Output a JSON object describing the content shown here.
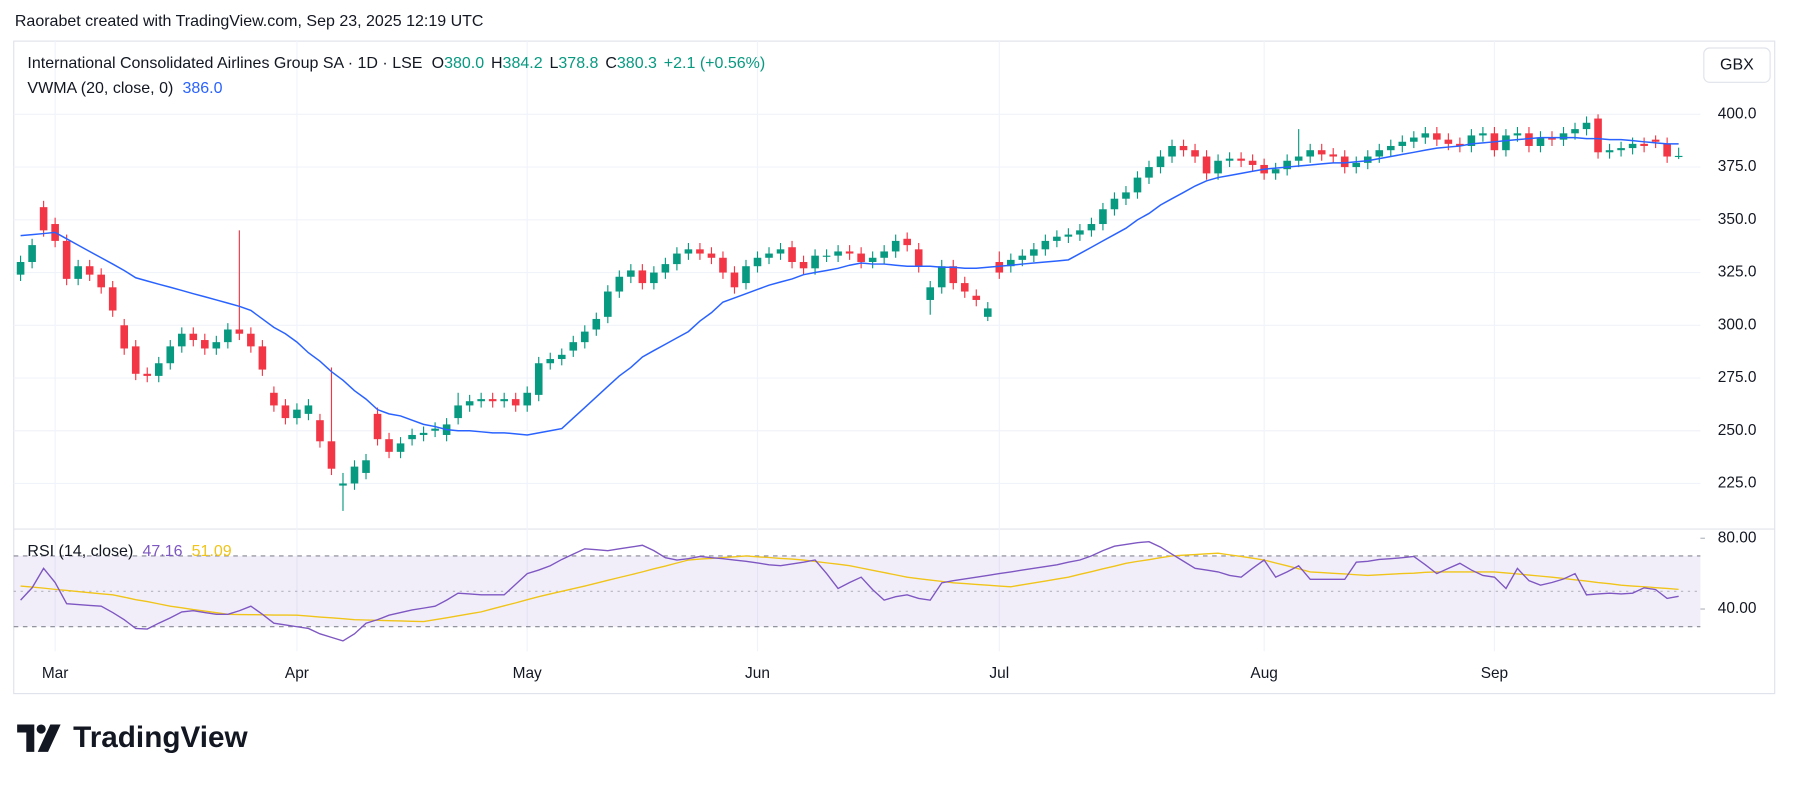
{
  "header": "Raorabet created with TradingView.com, Sep 23, 2025 12:19 UTC",
  "logo": "TradingView",
  "chart_data": [
    {
      "type": "candlestick",
      "title": "International Consolidated Airlines Group SA · 1D · LSE",
      "ohlc_legend": [
        {
          "label": "O",
          "value": "380.0"
        },
        {
          "label": "H",
          "value": "384.2"
        },
        {
          "label": "L",
          "value": "378.8"
        },
        {
          "label": "C",
          "value": "380.3"
        }
      ],
      "change": "+2.1 (+0.56%)",
      "unit": "GBX",
      "up_color": "#089981",
      "down_color": "#f23645",
      "grid": true,
      "ylim": [
        203.4,
        434.7
      ],
      "yticks": [
        {
          "value": 225,
          "label": "225.0"
        },
        {
          "value": 250,
          "label": "250.0"
        },
        {
          "value": 275,
          "label": "275.0"
        },
        {
          "value": 300,
          "label": "300.0"
        },
        {
          "value": 325,
          "label": "325.0"
        },
        {
          "value": 350,
          "label": "350.0"
        },
        {
          "value": 375,
          "label": "375.0"
        },
        {
          "value": 400,
          "label": "400.0"
        }
      ],
      "categories": [
        null,
        null,
        null,
        "Mar",
        null,
        null,
        null,
        null,
        null,
        null,
        null,
        null,
        null,
        null,
        null,
        null,
        null,
        null,
        null,
        null,
        null,
        null,
        null,
        null,
        "Apr",
        null,
        null,
        null,
        null,
        null,
        null,
        null,
        null,
        null,
        null,
        null,
        null,
        null,
        null,
        null,
        null,
        null,
        null,
        null,
        "May",
        null,
        null,
        null,
        null,
        null,
        null,
        null,
        null,
        null,
        null,
        null,
        null,
        null,
        null,
        null,
        null,
        null,
        null,
        null,
        "Jun",
        null,
        null,
        null,
        null,
        null,
        null,
        null,
        null,
        null,
        null,
        null,
        null,
        null,
        null,
        null,
        null,
        null,
        null,
        null,
        null,
        "Jul",
        null,
        null,
        null,
        null,
        null,
        null,
        null,
        null,
        null,
        null,
        null,
        null,
        null,
        null,
        null,
        null,
        null,
        null,
        null,
        null,
        null,
        null,
        "Aug",
        null,
        null,
        null,
        null,
        null,
        null,
        null,
        null,
        null,
        null,
        null,
        null,
        null,
        null,
        null,
        null,
        null,
        null,
        null,
        "Sep",
        null,
        null,
        null,
        null,
        null,
        null,
        null,
        null,
        null,
        null,
        null,
        null,
        null,
        null,
        null,
        null
      ],
      "open": [
        324,
        330,
        356,
        348,
        340,
        322,
        328,
        324,
        318,
        300,
        290,
        277,
        276,
        282,
        290,
        296,
        293,
        289,
        292,
        298,
        296,
        290,
        268,
        262,
        256,
        258,
        255,
        245,
        224,
        225,
        230,
        258,
        246,
        240,
        246,
        248,
        250,
        248,
        256,
        262,
        264,
        265,
        264,
        265,
        262,
        267,
        282,
        284,
        288,
        292,
        298,
        304,
        316,
        323,
        326,
        320,
        325,
        329,
        334,
        336,
        334,
        332,
        325,
        320,
        328,
        332,
        334,
        337,
        330,
        327,
        333,
        333,
        335,
        334,
        330,
        332,
        335,
        341,
        336,
        312,
        318,
        328,
        320,
        314,
        304,
        330,
        328,
        331,
        333,
        336,
        340,
        342,
        343,
        345,
        348,
        355,
        360,
        363,
        370,
        375,
        380,
        385,
        383,
        380,
        372,
        378,
        379,
        378,
        376,
        372,
        374,
        378,
        380,
        383,
        381,
        380,
        375,
        377,
        380,
        383,
        385,
        387,
        389,
        391,
        388,
        386,
        385,
        390,
        391,
        383,
        390,
        391,
        385,
        389,
        388,
        391,
        393,
        398,
        382,
        383,
        384,
        386,
        388,
        386,
        380
      ],
      "high": [
        333,
        341,
        359,
        351,
        343,
        331,
        331,
        327,
        321,
        303,
        293,
        280,
        285,
        293,
        299,
        299,
        296,
        295,
        301,
        345,
        299,
        293,
        271,
        265,
        263,
        265,
        258,
        280,
        230,
        236,
        239,
        261,
        249,
        247,
        251,
        252,
        254,
        256,
        268,
        267,
        268,
        268,
        268,
        268,
        271,
        285,
        287,
        289,
        295,
        300,
        306,
        319,
        326,
        329,
        329,
        328,
        332,
        337,
        339,
        339,
        337,
        335,
        328,
        331,
        335,
        337,
        339,
        340,
        333,
        336,
        336,
        338,
        338,
        337,
        335,
        338,
        343,
        344,
        339,
        321,
        331,
        331,
        323,
        317,
        311,
        335,
        334,
        336,
        339,
        343,
        345,
        346,
        348,
        351,
        358,
        363,
        366,
        373,
        378,
        383,
        388,
        388,
        386,
        383,
        381,
        382,
        382,
        381,
        379,
        377,
        381,
        393,
        386,
        386,
        384,
        383,
        380,
        383,
        386,
        388,
        390,
        392,
        394,
        394,
        391,
        389,
        393,
        394,
        394,
        393,
        394,
        394,
        392,
        392,
        394,
        396,
        399,
        400,
        386,
        387,
        389,
        389,
        390,
        389,
        384.2
      ],
      "low": [
        321,
        327,
        342,
        337,
        319,
        319,
        321,
        315,
        304,
        286,
        274,
        273,
        273,
        279,
        287,
        290,
        286,
        286,
        289,
        293,
        287,
        276,
        259,
        253,
        253,
        255,
        242,
        229,
        212,
        222,
        227,
        243,
        237,
        237,
        243,
        245,
        247,
        245,
        253,
        259,
        261,
        261,
        261,
        259,
        259,
        264,
        279,
        281,
        285,
        289,
        295,
        301,
        313,
        320,
        317,
        317,
        322,
        326,
        331,
        331,
        329,
        322,
        315,
        317,
        325,
        329,
        331,
        327,
        324,
        324,
        330,
        330,
        331,
        327,
        327,
        329,
        332,
        335,
        325,
        305,
        315,
        317,
        313,
        309,
        302,
        322,
        325,
        328,
        330,
        333,
        337,
        339,
        340,
        342,
        345,
        352,
        357,
        360,
        367,
        372,
        377,
        380,
        377,
        369,
        369,
        375,
        375,
        373,
        369,
        369,
        371,
        375,
        377,
        378,
        377,
        372,
        372,
        374,
        377,
        380,
        382,
        384,
        386,
        385,
        383,
        382,
        382,
        387,
        380,
        380,
        387,
        382,
        382,
        385,
        385,
        388,
        390,
        379,
        379,
        380,
        381,
        382,
        384,
        377,
        378.8
      ],
      "close": [
        330,
        338,
        345,
        340,
        322,
        328,
        324,
        318,
        307,
        289,
        277,
        276,
        282,
        290,
        296,
        293,
        289,
        292,
        298,
        296,
        290,
        279,
        262,
        256,
        260,
        262,
        245,
        232,
        225,
        233,
        236,
        246,
        240,
        244,
        248,
        249,
        251,
        253,
        262,
        264,
        265,
        264,
        265,
        262,
        268,
        282,
        284,
        286,
        292,
        297,
        303,
        316,
        323,
        326,
        320,
        325,
        329,
        334,
        336,
        334,
        332,
        325,
        318,
        328,
        332,
        334,
        336,
        330,
        327,
        333,
        333,
        335,
        334,
        330,
        332,
        335,
        340,
        338,
        328,
        318,
        328,
        320,
        316,
        312,
        308,
        325,
        331,
        333,
        336,
        340,
        342,
        343,
        345,
        348,
        355,
        360,
        363,
        370,
        375,
        380,
        385,
        383,
        380,
        372,
        378,
        379,
        378,
        376,
        372,
        374,
        378,
        380,
        383,
        381,
        380,
        375,
        377,
        380,
        383,
        385,
        387,
        389,
        391,
        388,
        386,
        385,
        390,
        391,
        383,
        390,
        391,
        385,
        389,
        388,
        391,
        393,
        396,
        382,
        383,
        384,
        386,
        385,
        387,
        380,
        380.3
      ],
      "overlays": [
        {
          "name": "VWMA (20, close, 0)",
          "color": "#2962ff",
          "value_label": "386.0",
          "values": [
            342.5,
            343,
            343.5,
            344,
            341,
            338,
            335,
            332,
            329,
            326,
            322.5,
            321,
            319.5,
            318,
            316.5,
            315,
            313.5,
            312,
            310.5,
            309,
            307,
            303,
            299,
            296,
            292,
            287,
            283,
            278,
            274,
            269,
            265,
            260,
            258,
            257,
            255,
            253,
            252,
            250.5,
            250,
            250,
            249.5,
            249,
            249,
            248.5,
            248,
            249,
            250,
            251,
            256,
            261,
            266,
            271,
            276,
            280,
            285,
            288,
            291,
            294,
            297,
            302,
            306,
            311,
            313,
            315,
            317,
            319,
            320.5,
            322,
            324,
            325,
            326,
            327,
            328.5,
            329.5,
            329,
            329,
            328.5,
            328,
            328,
            328,
            327.5,
            327.5,
            327,
            327,
            327.5,
            328,
            328.5,
            329,
            329.5,
            330,
            330.5,
            331,
            334,
            337,
            340,
            343,
            346,
            350,
            353,
            357,
            360,
            363,
            366,
            368.5,
            370,
            371,
            372,
            373,
            374,
            374.5,
            375,
            375.5,
            376,
            376.5,
            377,
            377,
            377.5,
            378,
            379,
            380,
            381,
            382,
            383,
            384,
            384.5,
            385,
            386,
            386.5,
            387,
            387.5,
            388,
            388.5,
            389,
            389,
            389,
            389,
            388.5,
            388.5,
            388,
            388,
            387.5,
            387,
            386.5,
            386,
            386
          ]
        }
      ]
    },
    {
      "type": "line",
      "ylim": [
        16.1,
        85.2
      ],
      "yticks": [
        {
          "value": 40,
          "label": "40.00"
        },
        {
          "value": 80,
          "label": "80.00"
        }
      ],
      "band_lines": [
        70,
        50,
        30
      ],
      "band_color": "#7e57c2",
      "series": [
        {
          "name": "RSI (14, close)",
          "color": "#7e57c2",
          "value_label": "47.16",
          "values": [
            45,
            52,
            63,
            55,
            43,
            42.5,
            42,
            41.6,
            38,
            34,
            29,
            28.7,
            32,
            35,
            38.4,
            39,
            38,
            37,
            37,
            39,
            41.6,
            37,
            32,
            31,
            30,
            29,
            26,
            24,
            22,
            26,
            32,
            34,
            36.5,
            38,
            39.5,
            40.5,
            41.6,
            45,
            49,
            48.5,
            48,
            48,
            48,
            54,
            60,
            62,
            64.5,
            68,
            71,
            74,
            73.5,
            73,
            74,
            75,
            76,
            73,
            69,
            67.7,
            68.5,
            69.7,
            69,
            68.5,
            67.7,
            67,
            66,
            65,
            64.5,
            65.5,
            66.5,
            67.7,
            60,
            51.6,
            55,
            58,
            51,
            45,
            47,
            48,
            46,
            45,
            54.8,
            56,
            57,
            58,
            59,
            60,
            61,
            62,
            63,
            64,
            65,
            66.5,
            67.7,
            70,
            73,
            75.5,
            76.5,
            77.5,
            78,
            75,
            71,
            67,
            63,
            62,
            61,
            59,
            58,
            63,
            67.7,
            58,
            61,
            64.5,
            56.8,
            56.8,
            56.8,
            56.8,
            66.5,
            67,
            68,
            68.5,
            69,
            69.7,
            65,
            60,
            63,
            65.8,
            62,
            59,
            58,
            51.6,
            63,
            56,
            53.5,
            55,
            57,
            60,
            48,
            48.5,
            49,
            48.5,
            49,
            52,
            51,
            46,
            47.16
          ]
        },
        {
          "color": "#f0c419",
          "value_label": "51.09",
          "values": [
            53,
            52.4,
            51.8,
            51.1,
            50.5,
            49.9,
            49.2,
            48.6,
            48,
            46.7,
            45.3,
            44.2,
            42.9,
            41.6,
            40.7,
            39.7,
            38.8,
            37.9,
            37,
            36.9,
            36.8,
            36.7,
            36.6,
            36.6,
            36.5,
            36,
            35.5,
            35,
            34.5,
            34,
            33.8,
            33.6,
            33.4,
            33.3,
            33.1,
            32.9,
            34,
            35,
            36.2,
            37.3,
            38.4,
            40.1,
            41.8,
            43.5,
            45.3,
            47,
            48.5,
            50,
            51.5,
            53,
            54.6,
            56.2,
            57.8,
            59.4,
            61,
            62.7,
            64.3,
            66,
            67.7,
            68.2,
            68.6,
            69.1,
            69.5,
            70,
            69.5,
            69.1,
            68.6,
            68.2,
            67.7,
            66.9,
            66.1,
            65.3,
            64.5,
            63.2,
            61.9,
            60.6,
            59.3,
            58,
            57.2,
            56.4,
            55.6,
            54.8,
            54.4,
            53.9,
            53.5,
            53,
            52.6,
            53.7,
            54.7,
            55.8,
            56.9,
            58,
            59.6,
            61.1,
            62.7,
            64.2,
            65.8,
            66.9,
            67.9,
            69,
            70,
            70.4,
            70.8,
            71.2,
            71.6,
            70.6,
            69.7,
            68.7,
            67.7,
            66,
            64.4,
            62.7,
            61,
            60.6,
            60.2,
            59.8,
            59.4,
            59,
            59.3,
            59.7,
            60,
            60.3,
            60.7,
            61,
            61,
            61,
            61,
            61,
            61,
            60.4,
            59.8,
            59.2,
            58.6,
            58,
            57.3,
            56.5,
            55.8,
            55,
            54.3,
            53.5,
            53,
            52.6,
            52.1,
            51.6,
            51.09
          ]
        }
      ]
    }
  ]
}
